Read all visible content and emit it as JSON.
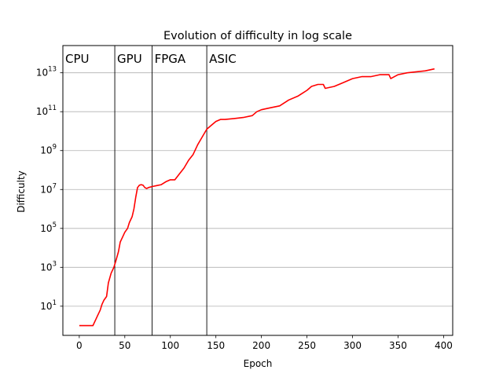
{
  "chart_data": {
    "type": "line",
    "title": "Evolution of difficulty in log scale",
    "xlabel": "Epoch",
    "ylabel": "Difficulty",
    "xlim": [
      -18,
      410
    ],
    "ylim_log10": [
      -0.5,
      14.4
    ],
    "yscale": "log",
    "grid": "horizontal",
    "x_ticks": [
      0,
      50,
      100,
      150,
      200,
      250,
      300,
      350,
      400
    ],
    "y_ticks": [
      {
        "exp": 1,
        "label": "10",
        "sup": "1"
      },
      {
        "exp": 3,
        "label": "10",
        "sup": "3"
      },
      {
        "exp": 5,
        "label": "10",
        "sup": "5"
      },
      {
        "exp": 7,
        "label": "10",
        "sup": "7"
      },
      {
        "exp": 9,
        "label": "10",
        "sup": "9"
      },
      {
        "exp": 11,
        "label": "10",
        "sup": "11"
      },
      {
        "exp": 13,
        "label": "10",
        "sup": "13"
      }
    ],
    "eras": [
      {
        "label": "CPU",
        "start": -18,
        "end": 39
      },
      {
        "label": "GPU",
        "start": 39,
        "end": 80
      },
      {
        "label": "FPGA",
        "start": 80,
        "end": 140
      },
      {
        "label": "ASIC",
        "start": 140,
        "end": 410
      }
    ],
    "series": [
      {
        "color": "#ff0000",
        "points": [
          [
            0,
            0
          ],
          [
            10,
            0
          ],
          [
            15,
            0
          ],
          [
            18,
            0.3
          ],
          [
            20,
            0.5
          ],
          [
            23,
            0.8
          ],
          [
            25,
            1.1
          ],
          [
            27,
            1.3
          ],
          [
            30,
            1.5
          ],
          [
            32,
            2.2
          ],
          [
            35,
            2.7
          ],
          [
            38,
            3.0
          ],
          [
            40,
            3.3
          ],
          [
            43,
            3.8
          ],
          [
            45,
            4.3
          ],
          [
            48,
            4.6
          ],
          [
            50,
            4.8
          ],
          [
            53,
            5.0
          ],
          [
            55,
            5.3
          ],
          [
            58,
            5.6
          ],
          [
            60,
            6.0
          ],
          [
            62,
            6.6
          ],
          [
            64,
            7.1
          ],
          [
            66,
            7.22
          ],
          [
            68,
            7.25
          ],
          [
            70,
            7.22
          ],
          [
            72,
            7.1
          ],
          [
            74,
            7.05
          ],
          [
            76,
            7.1
          ],
          [
            80,
            7.15
          ],
          [
            85,
            7.2
          ],
          [
            90,
            7.25
          ],
          [
            95,
            7.4
          ],
          [
            100,
            7.5
          ],
          [
            105,
            7.5
          ],
          [
            110,
            7.8
          ],
          [
            115,
            8.1
          ],
          [
            120,
            8.5
          ],
          [
            125,
            8.8
          ],
          [
            130,
            9.3
          ],
          [
            135,
            9.7
          ],
          [
            140,
            10.1
          ],
          [
            145,
            10.3
          ],
          [
            150,
            10.5
          ],
          [
            155,
            10.6
          ],
          [
            160,
            10.6
          ],
          [
            170,
            10.65
          ],
          [
            180,
            10.7
          ],
          [
            190,
            10.8
          ],
          [
            195,
            11.0
          ],
          [
            200,
            11.1
          ],
          [
            210,
            11.2
          ],
          [
            220,
            11.3
          ],
          [
            230,
            11.6
          ],
          [
            240,
            11.8
          ],
          [
            250,
            12.1
          ],
          [
            255,
            12.3
          ],
          [
            262,
            12.4
          ],
          [
            268,
            12.4
          ],
          [
            270,
            12.2
          ],
          [
            280,
            12.3
          ],
          [
            290,
            12.5
          ],
          [
            300,
            12.7
          ],
          [
            310,
            12.8
          ],
          [
            320,
            12.8
          ],
          [
            330,
            12.9
          ],
          [
            340,
            12.9
          ],
          [
            342,
            12.7
          ],
          [
            350,
            12.9
          ],
          [
            360,
            13.0
          ],
          [
            370,
            13.05
          ],
          [
            380,
            13.1
          ],
          [
            390,
            13.2
          ]
        ]
      }
    ]
  }
}
